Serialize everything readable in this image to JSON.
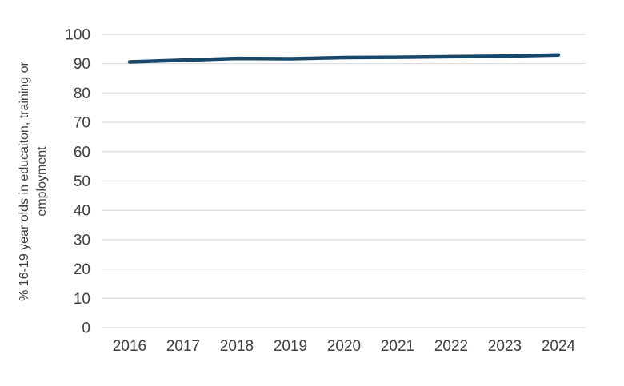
{
  "chart_data": {
    "type": "line",
    "title": "",
    "x": [
      2016,
      2017,
      2018,
      2019,
      2020,
      2021,
      2022,
      2023,
      2024
    ],
    "series": [
      {
        "name": "% 16-19 year olds in educaiton, training or employment",
        "values": [
          90.6,
          91.2,
          91.8,
          91.7,
          92.1,
          92.2,
          92.4,
          92.6,
          93.0
        ],
        "color": "#17486C"
      }
    ],
    "xlabel": "",
    "ylabel": "% 16-19 year olds in educaiton, training or employment",
    "ylabel_lines": [
      "% 16-19 year olds in educaiton, training or",
      "employment"
    ],
    "ylim": [
      0,
      100
    ],
    "yticks": [
      0,
      10,
      20,
      30,
      40,
      50,
      60,
      70,
      80,
      90,
      100
    ],
    "grid": "horizontal-only",
    "legend_position": "none",
    "colors": {
      "line": "#17486C",
      "gridline": "#D9D9D9",
      "tick_label": "#404040",
      "axis_label": "#404040",
      "background": "#FFFFFF"
    }
  }
}
